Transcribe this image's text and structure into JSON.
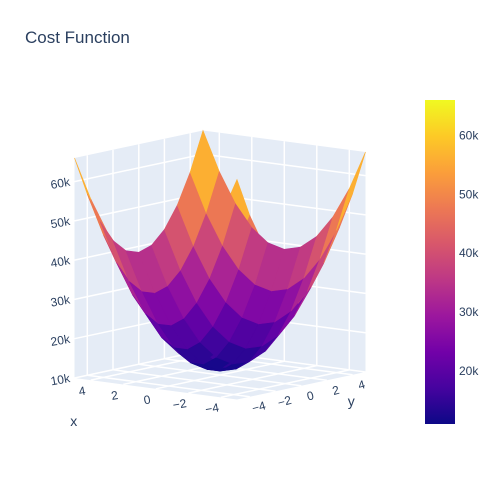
{
  "chart_data": {
    "type": "surface",
    "title": "Cost Function",
    "x_axis": {
      "label": "x",
      "ticks": [
        4,
        2,
        0,
        -2,
        -4
      ],
      "tick_labels": [
        "4",
        "2",
        "0",
        "−2",
        "−4"
      ],
      "range": [
        -5,
        5
      ]
    },
    "y_axis": {
      "label": "y",
      "ticks": [
        4,
        2,
        0,
        -2,
        -4
      ],
      "tick_labels": [
        "4",
        "2",
        "0",
        "−2",
        "−4"
      ],
      "range": [
        -5,
        5
      ]
    },
    "z_axis": {
      "label": "",
      "ticks": [
        10000,
        20000,
        30000,
        40000,
        50000,
        60000
      ],
      "tick_labels": [
        "10k",
        "20k",
        "30k",
        "40k",
        "50k",
        "60k"
      ],
      "range": [
        10000,
        66000
      ]
    },
    "colorbar": {
      "ticks": [
        20000,
        30000,
        40000,
        50000,
        60000
      ],
      "tick_labels": [
        "20k",
        "30k",
        "40k",
        "50k",
        "60k"
      ],
      "cmin": 11000,
      "cmax": 66000
    },
    "colorscale": [
      "#0d0887",
      "#46039f",
      "#7201a8",
      "#9c179e",
      "#bd3786",
      "#d8576b",
      "#ed7953",
      "#fb9f3a",
      "#fdca26",
      "#f0f921"
    ],
    "grid_x": [
      -5,
      -4,
      -3,
      -2,
      -1,
      0,
      1,
      2,
      3,
      4,
      5
    ],
    "grid_y": [
      -5,
      -4,
      -3,
      -2,
      -1,
      0,
      1,
      2,
      3,
      4,
      5
    ],
    "z_formula": "z = 11000 + 1100 * (x^2 + y^2)",
    "z_min": 11000,
    "z_max": 66000
  }
}
